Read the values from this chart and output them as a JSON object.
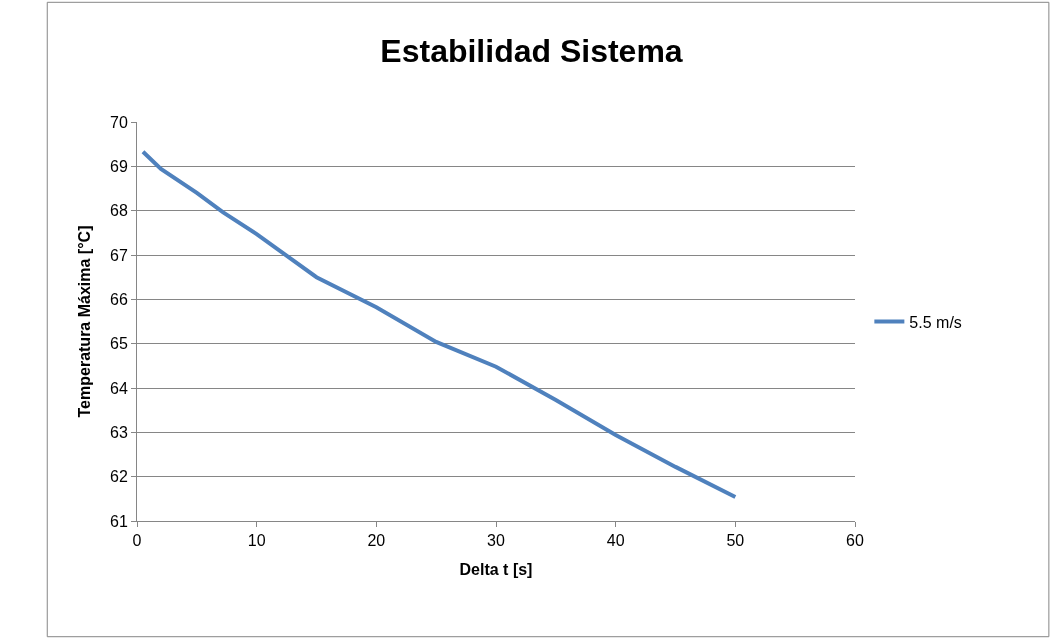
{
  "chart_data": {
    "type": "line",
    "title": "Estabilidad Sistema",
    "xlabel": "Delta t [s]",
    "ylabel": "Temperatura Máxima [°C]",
    "x": [
      0.5,
      2,
      5,
      7.2,
      10,
      15,
      20,
      25,
      30,
      35,
      40,
      45,
      50
    ],
    "series": [
      {
        "name": "5.5 m/s",
        "color": "#4f81bd",
        "values": [
          69.33,
          68.94,
          68.4,
          67.96,
          67.47,
          66.5,
          65.82,
          65.04,
          64.48,
          63.73,
          62.94,
          62.22,
          61.54
        ]
      }
    ],
    "xlim": [
      0,
      60
    ],
    "xticks": [
      0,
      10,
      20,
      30,
      40,
      50,
      60
    ],
    "ylim": [
      61,
      70
    ],
    "yticks": [
      61,
      62,
      63,
      64,
      65,
      66,
      67,
      68,
      69,
      70
    ],
    "grid": "y",
    "legend": "right",
    "marker": "none",
    "line_style": "solid"
  }
}
